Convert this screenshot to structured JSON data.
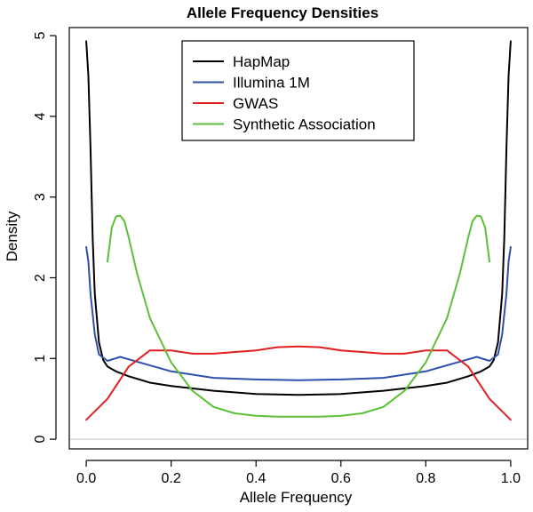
{
  "chart_data": {
    "type": "line",
    "title": "Allele Frequency Densities",
    "xlabel": "Allele Frequency",
    "ylabel": "Density",
    "xlim": [
      -0.04,
      1.04
    ],
    "ylim": [
      -0.12,
      5.1
    ],
    "x_ticks": [
      0.0,
      0.2,
      0.4,
      0.6,
      0.8,
      1.0
    ],
    "x_tick_labels": [
      "0.0",
      "0.2",
      "0.4",
      "0.6",
      "0.8",
      "1.0"
    ],
    "y_ticks": [
      0,
      1,
      2,
      3,
      4,
      5
    ],
    "y_tick_labels": [
      "0",
      "1",
      "2",
      "3",
      "4",
      "5"
    ],
    "grid": false,
    "reference_line": 0,
    "legend_position": "top-center",
    "series": [
      {
        "name": "HapMap",
        "color": "#000000",
        "x": [
          0.0,
          0.005,
          0.01,
          0.015,
          0.02,
          0.03,
          0.04,
          0.05,
          0.07,
          0.1,
          0.15,
          0.2,
          0.3,
          0.4,
          0.5,
          0.6,
          0.7,
          0.8,
          0.85,
          0.9,
          0.93,
          0.95,
          0.96,
          0.97,
          0.98,
          0.985,
          0.99,
          0.995,
          1.0
        ],
        "y": [
          4.93,
          4.5,
          3.6,
          2.5,
          1.8,
          1.2,
          0.98,
          0.9,
          0.84,
          0.78,
          0.7,
          0.66,
          0.6,
          0.56,
          0.55,
          0.56,
          0.6,
          0.66,
          0.7,
          0.78,
          0.84,
          0.9,
          0.98,
          1.2,
          1.8,
          2.5,
          3.6,
          4.5,
          4.93
        ]
      },
      {
        "name": "Illumina 1M",
        "color": "#2f4fa8",
        "x": [
          0.0,
          0.005,
          0.01,
          0.02,
          0.03,
          0.05,
          0.08,
          0.12,
          0.2,
          0.3,
          0.4,
          0.5,
          0.6,
          0.7,
          0.8,
          0.88,
          0.92,
          0.95,
          0.97,
          0.98,
          0.99,
          0.995,
          1.0
        ],
        "y": [
          2.38,
          2.2,
          1.8,
          1.3,
          1.05,
          0.97,
          1.02,
          0.96,
          0.84,
          0.76,
          0.74,
          0.73,
          0.74,
          0.76,
          0.84,
          0.96,
          1.02,
          0.97,
          1.05,
          1.3,
          1.8,
          2.2,
          2.38
        ]
      },
      {
        "name": "GWAS",
        "color": "#e02020",
        "x": [
          0.0,
          0.05,
          0.1,
          0.15,
          0.2,
          0.25,
          0.3,
          0.35,
          0.4,
          0.45,
          0.5,
          0.55,
          0.6,
          0.65,
          0.7,
          0.75,
          0.8,
          0.85,
          0.9,
          0.95,
          1.0
        ],
        "y": [
          0.24,
          0.5,
          0.9,
          1.1,
          1.1,
          1.06,
          1.06,
          1.08,
          1.1,
          1.14,
          1.15,
          1.14,
          1.1,
          1.08,
          1.06,
          1.06,
          1.1,
          1.1,
          0.9,
          0.5,
          0.24
        ]
      },
      {
        "name": "Synthetic Association",
        "color": "#5cbf3a",
        "x": [
          0.05,
          0.06,
          0.07,
          0.08,
          0.09,
          0.1,
          0.12,
          0.15,
          0.2,
          0.25,
          0.3,
          0.35,
          0.4,
          0.45,
          0.5,
          0.55,
          0.6,
          0.65,
          0.7,
          0.75,
          0.8,
          0.85,
          0.88,
          0.9,
          0.91,
          0.92,
          0.93,
          0.94,
          0.95
        ],
        "y": [
          2.2,
          2.62,
          2.76,
          2.77,
          2.7,
          2.5,
          2.05,
          1.5,
          0.95,
          0.6,
          0.4,
          0.32,
          0.29,
          0.28,
          0.28,
          0.28,
          0.29,
          0.32,
          0.4,
          0.6,
          0.95,
          1.5,
          2.05,
          2.5,
          2.7,
          2.77,
          2.76,
          2.62,
          2.2
        ]
      }
    ]
  }
}
